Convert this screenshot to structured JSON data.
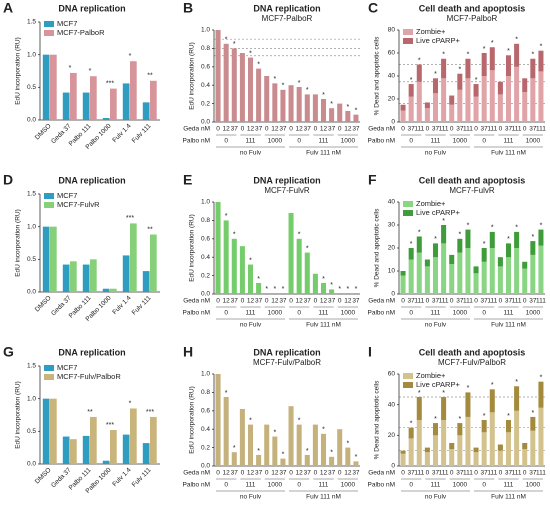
{
  "chart_data": [
    {
      "label": "A",
      "type": "grouped_bar",
      "title": "DNA replication",
      "ylabel": "EdU incorporation (RU)",
      "categories": [
        "DMSO",
        "Geda 37",
        "Palbo 111",
        "Palbo 1000",
        "Fulv 1.4",
        "Fulv 111"
      ],
      "series": [
        {
          "name": "MCF7",
          "color": "#2e9dbf",
          "values": [
            1.0,
            0.42,
            0.42,
            0.03,
            0.56,
            0.27
          ]
        },
        {
          "name": "MCF7-PalboR",
          "color": "#d7949a",
          "values": [
            1.0,
            0.72,
            0.67,
            0.48,
            0.9,
            0.6
          ]
        }
      ],
      "ylim": [
        0,
        1.5
      ],
      "yticks": [
        {
          "value": 0,
          "label": "0.0"
        },
        0.5,
        {
          "value": 1,
          "label": "1.0"
        },
        1.5
      ],
      "annotations": [
        {
          "index": 1,
          "text": "*"
        },
        {
          "index": 2,
          "text": "*"
        },
        {
          "index": 3,
          "text": "***"
        },
        {
          "index": 4,
          "text": "*"
        },
        {
          "index": 5,
          "text": "**"
        }
      ]
    },
    {
      "label": "B",
      "type": "bar",
      "title": "DNA replication",
      "subtitle": "MCF7-PalboR",
      "ylabel": "EdU incorporation (RU)",
      "categories": [
        "0",
        "12",
        "37",
        "0",
        "12",
        "37",
        "0",
        "12",
        "37",
        "0",
        "12",
        "37",
        "0",
        "12",
        "37",
        "0",
        "12",
        "37"
      ],
      "values": [
        1.0,
        0.85,
        0.8,
        0.75,
        0.7,
        0.58,
        0.5,
        0.42,
        0.35,
        0.4,
        0.38,
        0.3,
        0.3,
        0.25,
        0.15,
        0.2,
        0.12,
        0.08
      ],
      "color": "#c98b8e",
      "row_labels": [
        "Geda nM",
        "Palbo nM"
      ],
      "palbo_groups": [
        "0",
        "111",
        "1000",
        "0",
        "111",
        "1000"
      ],
      "fulv_groups": [
        "no Fulv",
        "Fulv 111 nM"
      ],
      "ylim": [
        0,
        1
      ],
      "yticks": [
        {
          "value": 0,
          "label": "0.0"
        },
        0.2,
        0.4,
        0.6,
        0.8,
        {
          "value": 1,
          "label": "1.0"
        }
      ],
      "hlines": [
        0.72,
        0.8,
        0.9
      ],
      "annotations": [
        {
          "index": 1,
          "text": "*"
        },
        {
          "index": 2,
          "text": "*"
        },
        {
          "index": 4,
          "text": "*"
        },
        {
          "index": 5,
          "text": "*"
        },
        {
          "index": 7,
          "text": "*"
        },
        {
          "index": 8,
          "text": "*"
        },
        {
          "index": 10,
          "text": "*"
        },
        {
          "index": 11,
          "text": "*"
        },
        {
          "index": 13,
          "text": "*"
        },
        {
          "index": 14,
          "text": "*"
        },
        {
          "index": 16,
          "text": "*"
        },
        {
          "index": 17,
          "text": "*"
        }
      ]
    },
    {
      "label": "C",
      "type": "stacked_bar",
      "title": "Cell death and apoptosis",
      "subtitle": "MCF7-PalboR",
      "ylabel": "% Dead and apoptotic cells",
      "categories": [
        "0",
        "37",
        "111",
        "0",
        "37",
        "111",
        "0",
        "37",
        "111",
        "0",
        "37",
        "111",
        "0",
        "37",
        "111",
        "0",
        "37",
        "111"
      ],
      "series": [
        {
          "name": "Zombie+",
          "color": "#e0a3a7",
          "values": [
            10,
            22,
            35,
            12,
            25,
            38,
            15,
            28,
            38,
            22,
            40,
            45,
            24,
            40,
            48,
            26,
            38,
            44
          ]
        },
        {
          "name": "Live cPARP+",
          "color": "#b8676d",
          "values": [
            5,
            11,
            15,
            5,
            13,
            17,
            8,
            14,
            17,
            11,
            20,
            20,
            11,
            18,
            20,
            12,
            17,
            18
          ]
        }
      ],
      "row_labels": [
        "Geda nM",
        "Palbo nM"
      ],
      "palbo_groups": [
        "0",
        "111",
        "1000",
        "0",
        "111",
        "1000"
      ],
      "fulv_groups": [
        "no Fulv",
        "Fulv 111 nM"
      ],
      "ylim": [
        0,
        80
      ],
      "yticks": [
        0,
        20,
        40,
        60,
        80
      ],
      "hlines": [
        16,
        35,
        50
      ],
      "annotations": [
        {
          "index": 1,
          "text": "*"
        },
        {
          "index": 2,
          "text": "*"
        },
        {
          "index": 4,
          "text": "*"
        },
        {
          "index": 5,
          "text": "*"
        },
        {
          "index": 7,
          "text": "*"
        },
        {
          "index": 8,
          "text": "*"
        },
        {
          "index": 9,
          "text": "*"
        },
        {
          "index": 10,
          "text": "*"
        },
        {
          "index": 11,
          "text": "*"
        },
        {
          "index": 13,
          "text": "*"
        },
        {
          "index": 14,
          "text": "*"
        },
        {
          "index": 16,
          "text": "*"
        },
        {
          "index": 17,
          "text": "*"
        }
      ]
    },
    {
      "label": "D",
      "type": "grouped_bar",
      "title": "DNA replication",
      "ylabel": "EdU incorporation (RU)",
      "categories": [
        "DMSO",
        "Geda 37",
        "Palbo 111",
        "Palbo 1000",
        "Fulv 1.4",
        "Fulv 111"
      ],
      "series": [
        {
          "name": "MCF7",
          "color": "#2e9dbf",
          "values": [
            1.0,
            0.42,
            0.42,
            0.05,
            0.56,
            0.32
          ]
        },
        {
          "name": "MCF7-FulvR",
          "color": "#86d07a",
          "values": [
            1.0,
            0.47,
            0.5,
            0.05,
            1.05,
            0.88
          ]
        }
      ],
      "ylim": [
        0,
        1.5
      ],
      "yticks": [
        {
          "value": 0,
          "label": "0.0"
        },
        0.5,
        {
          "value": 1,
          "label": "1.0"
        },
        1.5
      ],
      "annotations": [
        {
          "index": 4,
          "text": "***"
        },
        {
          "index": 5,
          "text": "**"
        }
      ]
    },
    {
      "label": "E",
      "type": "bar",
      "title": "DNA replication",
      "subtitle": "MCF7-FulvR",
      "ylabel": "EdU incorporation (RU)",
      "categories": [
        "0",
        "12",
        "37",
        "0",
        "12",
        "37",
        "0",
        "12",
        "37",
        "0",
        "12",
        "37",
        "0",
        "12",
        "37",
        "0",
        "12",
        "37"
      ],
      "values": [
        1.0,
        0.8,
        0.6,
        0.52,
        0.32,
        0.12,
        0.01,
        0.01,
        0.01,
        0.88,
        0.6,
        0.45,
        0.22,
        0.12,
        0.05,
        0.01,
        0.01,
        0.01
      ],
      "color": "#74cc6a",
      "row_labels": [
        "Geda nM",
        "Palbo nM"
      ],
      "palbo_groups": [
        "0",
        "111",
        "1000",
        "0",
        "111",
        "1000"
      ],
      "fulv_groups": [
        "no Fulv",
        "Fulv 111 nM"
      ],
      "ylim": [
        0,
        1
      ],
      "yticks": [
        {
          "value": 0,
          "label": "0.0"
        },
        0.2,
        0.4,
        0.6,
        0.8,
        {
          "value": 1,
          "label": "1.0"
        }
      ],
      "annotations": [
        {
          "index": 1,
          "text": "*"
        },
        {
          "index": 2,
          "text": "*"
        },
        {
          "index": 4,
          "text": "*"
        },
        {
          "index": 5,
          "text": "*"
        },
        {
          "index": 6,
          "text": "*"
        },
        {
          "index": 7,
          "text": "*"
        },
        {
          "index": 8,
          "text": "*"
        },
        {
          "index": 10,
          "text": "*"
        },
        {
          "index": 11,
          "text": "*"
        },
        {
          "index": 13,
          "text": "*"
        },
        {
          "index": 14,
          "text": "*"
        },
        {
          "index": 15,
          "text": "*"
        },
        {
          "index": 16,
          "text": "*"
        },
        {
          "index": 17,
          "text": "*"
        }
      ]
    },
    {
      "label": "F",
      "type": "stacked_bar",
      "title": "Cell death and apoptosis",
      "subtitle": "MCF7-FulvR",
      "ylabel": "% Dead and apoptotic cells",
      "categories": [
        "0",
        "37",
        "111",
        "0",
        "37",
        "111",
        "0",
        "37",
        "111",
        "0",
        "37",
        "111",
        "0",
        "37",
        "111",
        "0",
        "37",
        "111"
      ],
      "series": [
        {
          "name": "Zombie+",
          "color": "#8ad584",
          "values": [
            8,
            15,
            18,
            12,
            16,
            22,
            13,
            18,
            20,
            9,
            14,
            20,
            12,
            16,
            20,
            11,
            17,
            21
          ]
        },
        {
          "name": "Live cPARP+",
          "color": "#3f9c3a",
          "values": [
            2,
            5,
            7,
            3,
            6,
            8,
            4,
            6,
            8,
            3,
            6,
            7,
            4,
            6,
            7,
            3,
            6,
            7
          ]
        }
      ],
      "row_labels": [
        "Geda nM",
        "Palbo nM"
      ],
      "palbo_groups": [
        "0",
        "111",
        "1000",
        "0",
        "111",
        "1000"
      ],
      "fulv_groups": [
        "no Fulv",
        "Fulv 111 nM"
      ],
      "ylim": [
        0,
        40
      ],
      "yticks": [
        0,
        10,
        20,
        30,
        40
      ],
      "annotations": [
        {
          "index": 1,
          "text": "*"
        },
        {
          "index": 2,
          "text": "*"
        },
        {
          "index": 4,
          "text": "*"
        },
        {
          "index": 5,
          "text": "*"
        },
        {
          "index": 7,
          "text": "*"
        },
        {
          "index": 8,
          "text": "*"
        },
        {
          "index": 10,
          "text": "*"
        },
        {
          "index": 11,
          "text": "*"
        },
        {
          "index": 13,
          "text": "*"
        },
        {
          "index": 14,
          "text": "*"
        },
        {
          "index": 16,
          "text": "*"
        },
        {
          "index": 17,
          "text": "*"
        }
      ]
    },
    {
      "label": "G",
      "type": "grouped_bar",
      "title": "DNA replication",
      "ylabel": "EdU incorporation (RU)",
      "categories": [
        "DMSO",
        "Geda 37",
        "Palbo 111",
        "Palbo 1000",
        "Fulv 1.4",
        "Fulv 111"
      ],
      "series": [
        {
          "name": "MCF7",
          "color": "#2e9dbf",
          "values": [
            1.0,
            0.42,
            0.43,
            0.05,
            0.45,
            0.32
          ]
        },
        {
          "name": "MCF7-Fulv/PalboR",
          "color": "#c9b47b",
          "values": [
            1.0,
            0.38,
            0.72,
            0.52,
            0.85,
            0.72
          ]
        }
      ],
      "ylim": [
        0,
        1.5
      ],
      "yticks": [
        {
          "value": 0,
          "label": "0.0"
        },
        0.5,
        {
          "value": 1,
          "label": "1.0"
        },
        1.5
      ],
      "annotations": [
        {
          "index": 2,
          "text": "**"
        },
        {
          "index": 3,
          "text": "***"
        },
        {
          "index": 4,
          "text": "*"
        },
        {
          "index": 5,
          "text": "***"
        }
      ]
    },
    {
      "label": "H",
      "type": "bar",
      "title": "DNA replication",
      "subtitle": "MCF7-Fulv/PalboR",
      "ylabel": "EdU incorporation (RU)",
      "categories": [
        "0",
        "12",
        "37",
        "0",
        "12",
        "37",
        "0",
        "12",
        "37",
        "0",
        "12",
        "37",
        "0",
        "12",
        "37",
        "0",
        "12",
        "37"
      ],
      "values": [
        1.0,
        0.75,
        0.15,
        0.62,
        0.45,
        0.12,
        0.45,
        0.32,
        0.08,
        0.65,
        0.45,
        0.12,
        0.45,
        0.35,
        0.1,
        0.4,
        0.2,
        0.05
      ],
      "color": "#c5b17c",
      "row_labels": [
        "Geda nM",
        "Palbo nM"
      ],
      "palbo_groups": [
        "0",
        "111",
        "1000",
        "0",
        "111",
        "1000"
      ],
      "fulv_groups": [
        "no Fulv",
        "Fulv 111 nM"
      ],
      "ylim": [
        0,
        1
      ],
      "yticks": [
        {
          "value": 0,
          "label": "0.0"
        },
        0.2,
        0.4,
        0.6,
        0.8,
        {
          "value": 1,
          "label": "1.0"
        }
      ],
      "annotations": [
        {
          "index": 1,
          "text": "*"
        },
        {
          "index": 2,
          "text": "*"
        },
        {
          "index": 4,
          "text": "*"
        },
        {
          "index": 5,
          "text": "*"
        },
        {
          "index": 7,
          "text": "*"
        },
        {
          "index": 8,
          "text": "*"
        },
        {
          "index": 10,
          "text": "*"
        },
        {
          "index": 11,
          "text": "*"
        },
        {
          "index": 13,
          "text": "*"
        },
        {
          "index": 14,
          "text": "*"
        },
        {
          "index": 16,
          "text": "*"
        },
        {
          "index": 17,
          "text": "*"
        }
      ]
    },
    {
      "label": "I",
      "type": "stacked_bar",
      "title": "Cell death and apoptosis",
      "subtitle": "MCF7-Fulv/PalboR",
      "ylabel": "% Dead and apoptotic cells",
      "categories": [
        "0",
        "37",
        "111",
        "0",
        "37",
        "111",
        "0",
        "37",
        "111",
        "0",
        "37",
        "111",
        "0",
        "37",
        "111",
        "0",
        "37",
        "111"
      ],
      "series": [
        {
          "name": "Zombie+",
          "color": "#d3c28e",
          "values": [
            8,
            18,
            30,
            9,
            20,
            30,
            11,
            20,
            32,
            9,
            22,
            35,
            10,
            22,
            36,
            11,
            23,
            38
          ]
        },
        {
          "name": "Live cPARP+",
          "color": "#a38a3c",
          "values": [
            2,
            7,
            15,
            3,
            8,
            15,
            4,
            8,
            16,
            3,
            8,
            15,
            4,
            8,
            16,
            4,
            9,
            17
          ]
        }
      ],
      "row_labels": [
        "Geda nM",
        "Palbo nM"
      ],
      "palbo_groups": [
        "0",
        "111",
        "1000",
        "0",
        "111",
        "1000"
      ],
      "fulv_groups": [
        "no Fulv",
        "Fulv 111 nM"
      ],
      "ylim": [
        0,
        60
      ],
      "yticks": [
        0,
        20,
        40,
        60
      ],
      "hlines": [
        10,
        25,
        45
      ],
      "annotations": [
        {
          "index": 1,
          "text": "*"
        },
        {
          "index": 2,
          "text": "*"
        },
        {
          "index": 4,
          "text": "*"
        },
        {
          "index": 5,
          "text": "*"
        },
        {
          "index": 7,
          "text": "*"
        },
        {
          "index": 8,
          "text": "*"
        },
        {
          "index": 10,
          "text": "*"
        },
        {
          "index": 11,
          "text": "*"
        },
        {
          "index": 13,
          "text": "*"
        },
        {
          "index": 14,
          "text": "*"
        },
        {
          "index": 16,
          "text": "*"
        },
        {
          "index": 17,
          "text": "*"
        }
      ]
    }
  ]
}
